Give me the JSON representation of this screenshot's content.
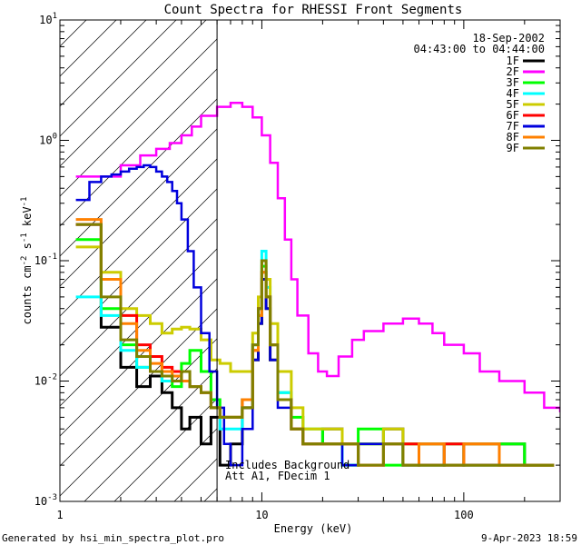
{
  "chart_data": {
    "type": "line",
    "title": "Count Spectra for RHESSI Front Segments",
    "xlabel": "Energy (keV)",
    "ylabel_parts": {
      "base": "counts cm",
      "exp1": "-2",
      "mid": " s",
      "exp2": "-1",
      "mid2": " keV",
      "exp3": "-1"
    },
    "x_scale": "log",
    "y_scale": "log",
    "xlim": [
      1,
      300
    ],
    "ylim": [
      0.001,
      10
    ],
    "x_ticks": [
      {
        "value": 1,
        "label": "1"
      },
      {
        "value": 10,
        "label": "10"
      },
      {
        "value": 100,
        "label": "100"
      }
    ],
    "y_ticks": [
      {
        "value": 10,
        "base": "10",
        "exp": "1"
      },
      {
        "value": 1,
        "base": "10",
        "exp": "0"
      },
      {
        "value": 0.1,
        "base": "10",
        "exp": "-1"
      },
      {
        "value": 0.01,
        "base": "10",
        "exp": "-2"
      },
      {
        "value": 0.001,
        "base": "10",
        "exp": "-3"
      }
    ],
    "attenuator_cutoff_keV": 6,
    "date": "18-Sep-2002",
    "time_range": "04:43:00 to 04:44:00",
    "annotations": [
      "Includes Background",
      "Att A1, FDecim 1"
    ],
    "series": [
      {
        "name": "1F",
        "color": "#000000",
        "x": [
          1.2,
          1.6,
          2.0,
          2.4,
          2.8,
          3.2,
          3.6,
          4.0,
          4.4,
          5.0,
          5.6,
          6.2,
          7.0,
          8.0,
          9.0,
          9.6,
          10.0,
          10.5,
          11.0,
          12,
          14,
          16,
          20,
          25,
          30,
          40,
          50,
          60,
          80,
          100,
          150,
          200,
          280
        ],
        "y": [
          0.2,
          0.028,
          0.013,
          0.009,
          0.011,
          0.008,
          0.006,
          0.004,
          0.005,
          0.003,
          0.005,
          0.002,
          0.003,
          0.006,
          0.015,
          0.03,
          0.07,
          0.04,
          0.015,
          0.007,
          0.004,
          0.003,
          0.004,
          0.002,
          0.003,
          0.004,
          0.002,
          0.003,
          0.002,
          0.003,
          0.003,
          0.002,
          0.002
        ]
      },
      {
        "name": "2F",
        "color": "#ff00ff",
        "x": [
          1.2,
          1.5,
          2.0,
          2.5,
          3.0,
          3.5,
          4.0,
          4.5,
          5.0,
          6.0,
          7.0,
          8.0,
          9.0,
          10.0,
          11.0,
          12.0,
          13.0,
          14.0,
          15.0,
          17.0,
          19.0,
          21.0,
          24.0,
          28.0,
          32.0,
          40.0,
          50.0,
          60.0,
          70.0,
          80.0,
          100.0,
          120.0,
          150.0,
          200.0,
          250.0,
          300.0
        ],
        "y": [
          0.5,
          0.5,
          0.62,
          0.75,
          0.85,
          0.95,
          1.1,
          1.3,
          1.6,
          1.9,
          2.05,
          1.9,
          1.55,
          1.1,
          0.65,
          0.33,
          0.15,
          0.07,
          0.035,
          0.017,
          0.012,
          0.011,
          0.016,
          0.022,
          0.026,
          0.03,
          0.033,
          0.03,
          0.025,
          0.02,
          0.017,
          0.012,
          0.01,
          0.008,
          0.006,
          0.0055
        ]
      },
      {
        "name": "3F",
        "color": "#00ff00",
        "x": [
          1.2,
          1.6,
          2.0,
          2.4,
          2.8,
          3.2,
          3.6,
          4.0,
          4.4,
          5.0,
          5.6,
          6.2,
          7.0,
          8.0,
          9.0,
          9.6,
          10.0,
          10.5,
          11.0,
          12,
          14,
          16,
          20,
          25,
          30,
          40,
          50,
          60,
          80,
          100,
          150,
          200,
          280
        ],
        "y": [
          0.15,
          0.04,
          0.02,
          0.013,
          0.012,
          0.01,
          0.009,
          0.014,
          0.018,
          0.012,
          0.007,
          0.005,
          0.005,
          0.007,
          0.02,
          0.035,
          0.09,
          0.05,
          0.02,
          0.008,
          0.005,
          0.004,
          0.003,
          0.003,
          0.004,
          0.002,
          0.003,
          0.002,
          0.003,
          0.002,
          0.003,
          0.002,
          0.002
        ]
      },
      {
        "name": "4F",
        "color": "#00ffff",
        "x": [
          1.2,
          1.6,
          2.0,
          2.4,
          2.8,
          3.2,
          3.6,
          4.0,
          4.4,
          5.0,
          5.6,
          6.2,
          7.0,
          8.0,
          9.0,
          9.6,
          10.0,
          10.5,
          11.0,
          12,
          14,
          16,
          20,
          25,
          30,
          40,
          50,
          60,
          80,
          100,
          150,
          200,
          280
        ],
        "y": [
          0.05,
          0.035,
          0.018,
          0.013,
          0.012,
          0.01,
          0.011,
          0.01,
          0.009,
          0.008,
          0.006,
          0.004,
          0.004,
          0.007,
          0.02,
          0.04,
          0.12,
          0.06,
          0.02,
          0.008,
          0.004,
          0.003,
          0.003,
          0.002,
          0.003,
          0.003,
          0.002,
          0.002,
          0.003,
          0.002,
          0.002,
          0.002,
          0.002
        ]
      },
      {
        "name": "5F",
        "color": "#cccc00",
        "x": [
          1.2,
          1.6,
          2.0,
          2.4,
          2.8,
          3.2,
          3.6,
          4.0,
          4.4,
          5.0,
          5.6,
          6.2,
          7.0,
          8.0,
          9.0,
          9.6,
          10.0,
          10.5,
          11.0,
          12,
          14,
          16,
          20,
          25,
          30,
          40,
          50,
          60,
          80,
          100,
          150,
          200,
          280
        ],
        "y": [
          0.13,
          0.08,
          0.04,
          0.035,
          0.03,
          0.025,
          0.027,
          0.028,
          0.027,
          0.022,
          0.015,
          0.014,
          0.012,
          0.012,
          0.025,
          0.05,
          0.1,
          0.07,
          0.03,
          0.012,
          0.006,
          0.004,
          0.004,
          0.003,
          0.003,
          0.004,
          0.003,
          0.003,
          0.003,
          0.003,
          0.002,
          0.002,
          0.002
        ]
      },
      {
        "name": "6F",
        "color": "#ff0000",
        "x": [
          1.2,
          1.6,
          2.0,
          2.4,
          2.8,
          3.2,
          3.6,
          4.0,
          4.4,
          5.0,
          5.6,
          6.2,
          7.0,
          8.0,
          9.0,
          9.6,
          10.0,
          10.5,
          11.0,
          12,
          14,
          16,
          20,
          25,
          30,
          40,
          50,
          60,
          80,
          100,
          150,
          200,
          280
        ],
        "y": [
          0.2,
          0.07,
          0.035,
          0.02,
          0.016,
          0.013,
          0.012,
          0.01,
          0.009,
          0.008,
          0.006,
          0.005,
          0.005,
          0.007,
          0.018,
          0.04,
          0.08,
          0.05,
          0.02,
          0.007,
          0.004,
          0.003,
          0.003,
          0.003,
          0.002,
          0.003,
          0.003,
          0.002,
          0.003,
          0.002,
          0.002,
          0.002,
          0.002
        ]
      },
      {
        "name": "7F",
        "color": "#0000dd",
        "x": [
          1.2,
          1.4,
          1.6,
          1.8,
          2.0,
          2.2,
          2.4,
          2.6,
          2.8,
          3.0,
          3.2,
          3.4,
          3.6,
          3.8,
          4.0,
          4.3,
          4.6,
          5.0,
          5.5,
          6.0,
          6.5,
          7.0,
          8.0,
          9.0,
          9.6,
          10.0,
          10.5,
          11.0,
          12,
          14,
          16,
          20,
          25,
          30,
          40,
          50,
          60,
          80,
          100,
          150,
          200,
          280
        ],
        "y": [
          0.32,
          0.45,
          0.5,
          0.52,
          0.55,
          0.58,
          0.6,
          0.62,
          0.6,
          0.55,
          0.5,
          0.45,
          0.38,
          0.3,
          0.22,
          0.12,
          0.06,
          0.025,
          0.012,
          0.006,
          0.003,
          0.002,
          0.004,
          0.015,
          0.03,
          0.07,
          0.04,
          0.015,
          0.006,
          0.004,
          0.003,
          0.003,
          0.002,
          0.003,
          0.003,
          0.002,
          0.003,
          0.002,
          0.002,
          0.002,
          0.002,
          0.002
        ]
      },
      {
        "name": "8F",
        "color": "#ff8000",
        "x": [
          1.2,
          1.6,
          2.0,
          2.4,
          2.8,
          3.2,
          3.6,
          4.0,
          4.4,
          5.0,
          5.6,
          6.2,
          7.0,
          8.0,
          9.0,
          9.6,
          10.0,
          10.5,
          11.0,
          12,
          14,
          16,
          20,
          25,
          30,
          40,
          50,
          60,
          80,
          100,
          150,
          200,
          280
        ],
        "y": [
          0.22,
          0.07,
          0.03,
          0.018,
          0.014,
          0.012,
          0.011,
          0.01,
          0.009,
          0.008,
          0.006,
          0.005,
          0.005,
          0.007,
          0.018,
          0.035,
          0.08,
          0.05,
          0.02,
          0.007,
          0.004,
          0.003,
          0.003,
          0.003,
          0.002,
          0.003,
          0.002,
          0.003,
          0.002,
          0.003,
          0.002,
          0.002,
          0.002
        ]
      },
      {
        "name": "9F",
        "color": "#808000",
        "x": [
          1.2,
          1.6,
          2.0,
          2.4,
          2.8,
          3.2,
          3.6,
          4.0,
          4.4,
          5.0,
          5.6,
          6.2,
          7.0,
          8.0,
          9.0,
          9.6,
          10.0,
          10.5,
          11.0,
          12,
          14,
          16,
          20,
          25,
          30,
          40,
          50,
          60,
          80,
          100,
          150,
          200,
          280
        ],
        "y": [
          0.2,
          0.05,
          0.022,
          0.016,
          0.012,
          0.011,
          0.01,
          0.012,
          0.009,
          0.008,
          0.006,
          0.005,
          0.005,
          0.006,
          0.02,
          0.04,
          0.1,
          0.05,
          0.02,
          0.007,
          0.004,
          0.003,
          0.003,
          0.003,
          0.002,
          0.003,
          0.002,
          0.002,
          0.002,
          0.002,
          0.002,
          0.002,
          0.002
        ]
      }
    ]
  },
  "footer": {
    "generated_by": "Generated by hsi_min_spectra_plot.pro",
    "timestamp": "9-Apr-2023 18:59"
  }
}
